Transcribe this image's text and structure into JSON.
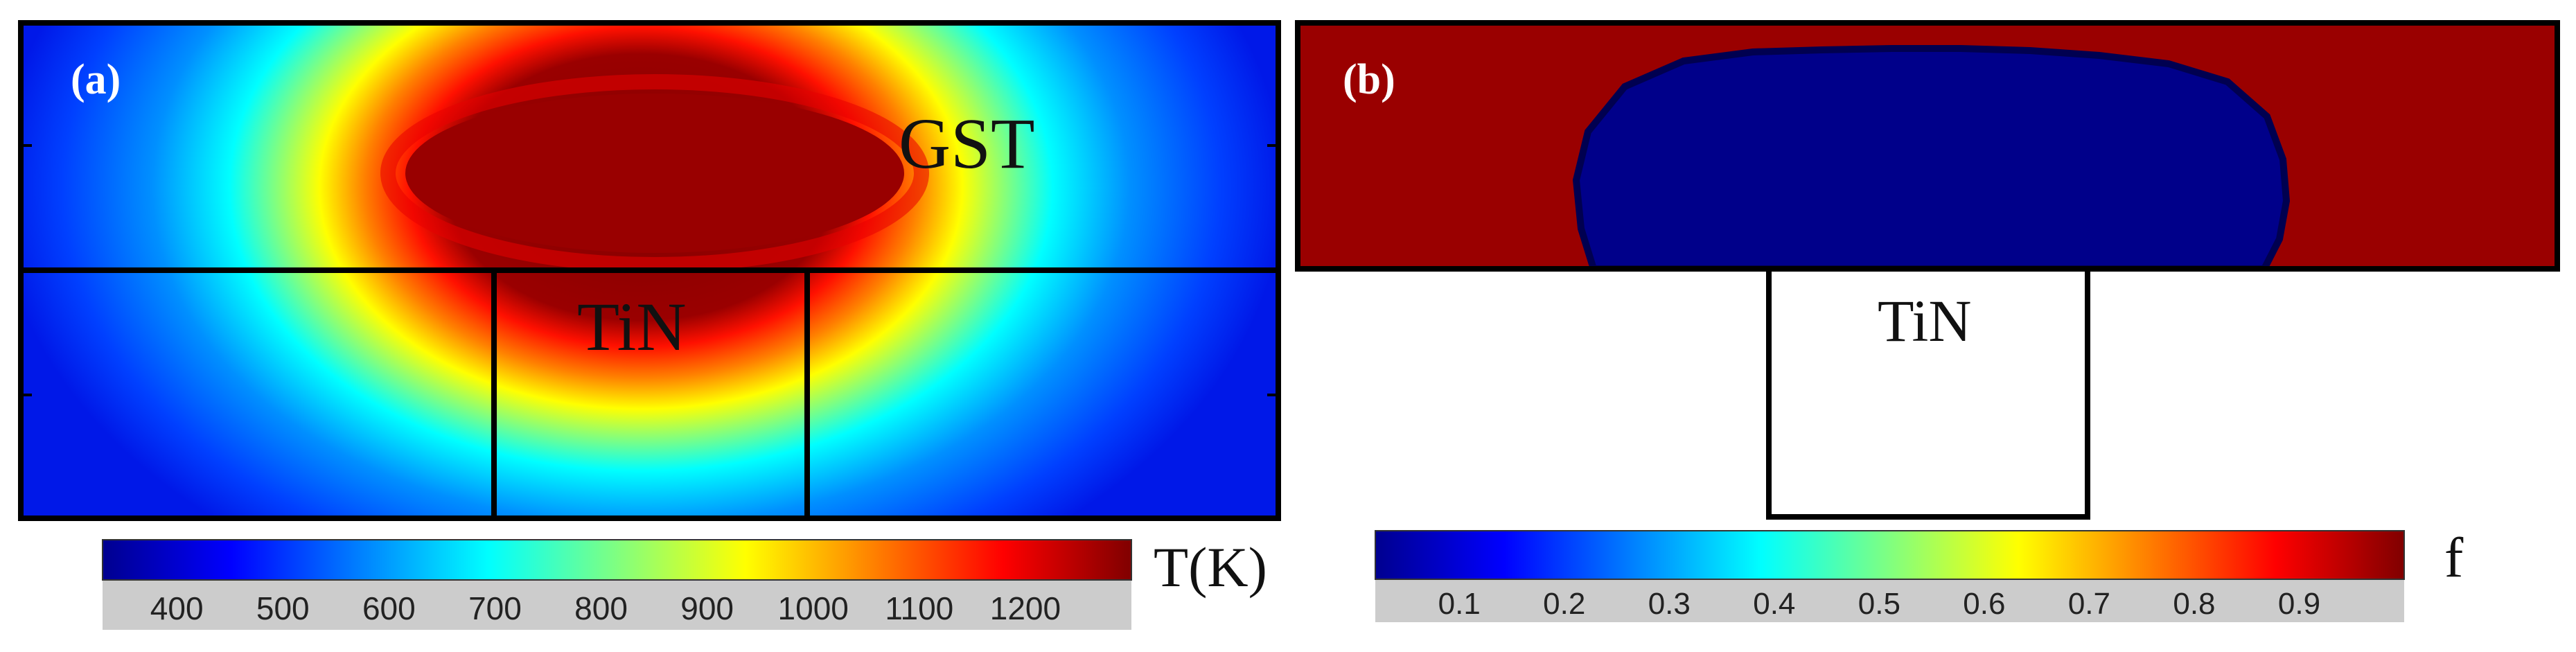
{
  "panel_a": {
    "label": "(a)",
    "material_top": "GST",
    "material_bottom": "TiN",
    "colorbar": {
      "title": "T(K)",
      "range": [
        330,
        1300
      ],
      "ticks": [
        "400",
        "500",
        "600",
        "700",
        "800",
        "900",
        "1000",
        "1100",
        "1200"
      ]
    }
  },
  "panel_b": {
    "label": "(b)",
    "material_bottom": "TiN",
    "colorbar": {
      "title": "f",
      "range": [
        0.02,
        1.0
      ],
      "ticks": [
        "0.1",
        "0.2",
        "0.3",
        "0.4",
        "0.5",
        "0.6",
        "0.7",
        "0.8",
        "0.9"
      ]
    }
  },
  "colors": {
    "jet": [
      "#00008f",
      "#0000ff",
      "#0080ff",
      "#00ffff",
      "#80ff80",
      "#ffff00",
      "#ff8000",
      "#ff0000",
      "#800000"
    ],
    "tick_band": "#cccccc",
    "melt_red": "#9a0000",
    "solid_blue": "#00008a"
  }
}
